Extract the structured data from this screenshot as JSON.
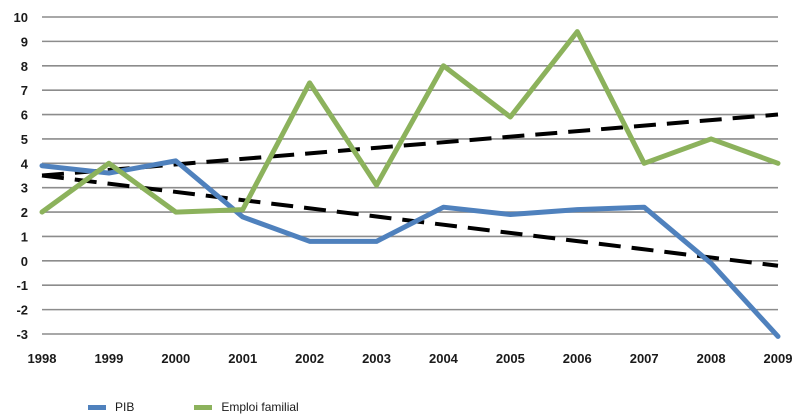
{
  "chart_data": {
    "type": "line",
    "title": "",
    "xlabel": "",
    "ylabel": "",
    "categories": [
      "1998",
      "1999",
      "2000",
      "2001",
      "2002",
      "2003",
      "2004",
      "2005",
      "2006",
      "2007",
      "2008",
      "2009"
    ],
    "ylim": [
      -3,
      10
    ],
    "yticks": [
      "10",
      "9",
      "8",
      "7",
      "6",
      "5",
      "4",
      "3",
      "2",
      "1",
      "0",
      "-1",
      "-2",
      "-3"
    ],
    "grid": true,
    "legend_position": "bottom-left",
    "series": [
      {
        "name": "PIB",
        "color": "#4f81bd",
        "values": [
          3.9,
          3.6,
          4.1,
          1.8,
          0.8,
          0.8,
          2.2,
          1.9,
          2.1,
          2.2,
          -0.1,
          -3.1
        ]
      },
      {
        "name": "Emploi familial",
        "color": "#8cb25c",
        "values": [
          2.0,
          4.0,
          2.0,
          2.1,
          7.3,
          3.1,
          8.0,
          5.9,
          9.4,
          4.0,
          5.0,
          4.0
        ]
      }
    ],
    "trendlines": [
      {
        "of": "Emploi familial",
        "style": "dashed",
        "color": "#000000",
        "start": 3.5,
        "end": 6.0
      },
      {
        "of": "PIB",
        "style": "dashed",
        "color": "#000000",
        "start": 3.5,
        "end": -0.2
      }
    ]
  }
}
